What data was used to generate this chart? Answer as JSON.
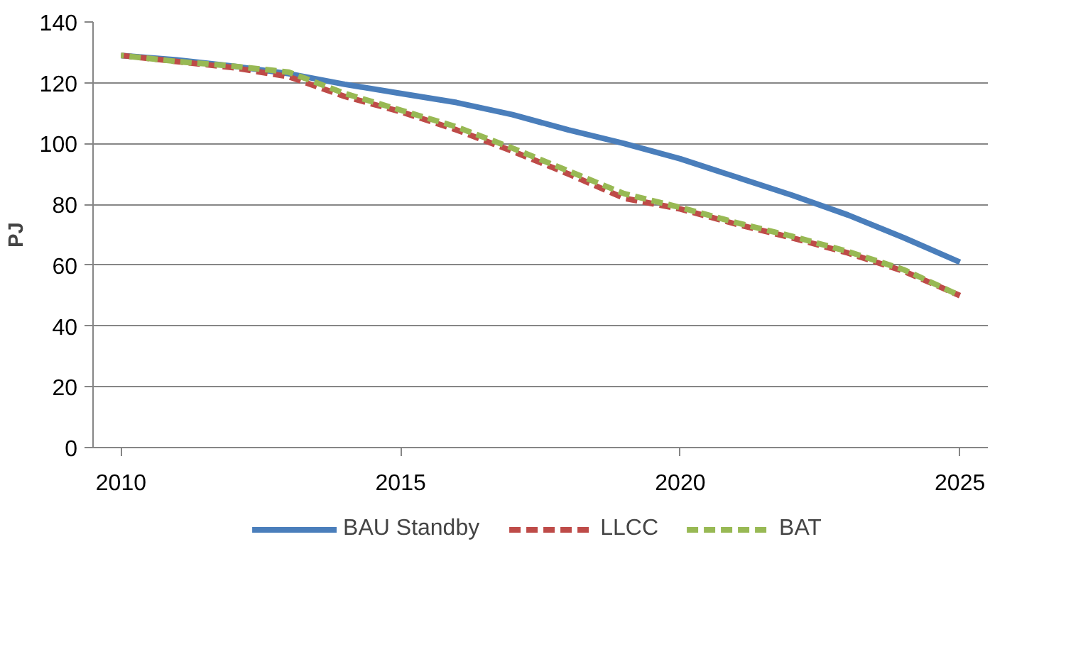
{
  "chart_data": {
    "type": "line",
    "ylabel": "PJ",
    "x": [
      2010,
      2011,
      2012,
      2013,
      2014,
      2015,
      2016,
      2017,
      2018,
      2019,
      2020,
      2021,
      2022,
      2023,
      2024,
      2025
    ],
    "series": [
      {
        "name": "BAU Standby",
        "color": "#4a7ebb",
        "line_style": "solid",
        "values": [
          129,
          127.5,
          125.5,
          123,
          119.5,
          116.5,
          113.5,
          109.5,
          104.5,
          100,
          95,
          89,
          83,
          76.5,
          69,
          61
        ]
      },
      {
        "name": "LLCC",
        "color": "#be4b48",
        "line_style": "dashed",
        "values": [
          129,
          127,
          125,
          122,
          115.5,
          110.5,
          104.5,
          97.5,
          90,
          82,
          78.5,
          73.5,
          69,
          64,
          58,
          50
        ]
      },
      {
        "name": "BAT",
        "color": "#98b954",
        "line_style": "dashed",
        "values": [
          129,
          127,
          125.5,
          123.5,
          116.5,
          111,
          105.5,
          98.5,
          91,
          83.5,
          79,
          74,
          69.5,
          64.5,
          58.5,
          50
        ]
      }
    ],
    "xlim": [
      2009.5,
      2025.5
    ],
    "xticks": [
      2010,
      2015,
      2020,
      2025
    ],
    "ylim": [
      0,
      140
    ],
    "yticks": [
      0,
      20,
      40,
      60,
      80,
      100,
      120,
      140
    ],
    "grid": "y",
    "legend": "bottom",
    "marker": "none"
  }
}
